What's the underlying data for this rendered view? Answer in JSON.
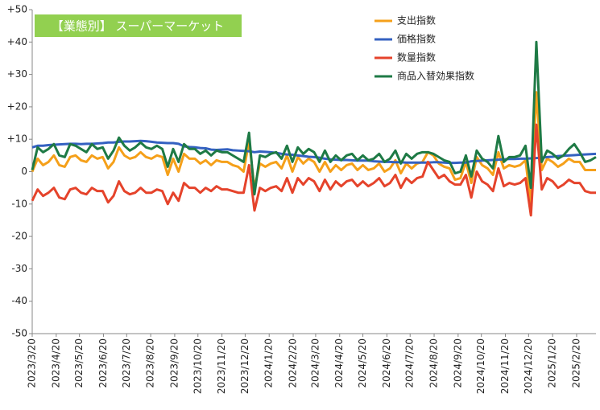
{
  "chart_data": {
    "type": "line",
    "title": "【業態別】 スーパーマーケット",
    "title_color": "#92d050",
    "legend": "top-right",
    "x": [
      "2023/3/20",
      "2023/3/27",
      "2023/4/3",
      "2023/4/10",
      "2023/4/17",
      "2023/4/24",
      "2023/5/1",
      "2023/5/8",
      "2023/5/15",
      "2023/5/22",
      "2023/5/29",
      "2023/6/5",
      "2023/6/12",
      "2023/6/19",
      "2023/6/26",
      "2023/7/3",
      "2023/7/10",
      "2023/7/17",
      "2023/7/24",
      "2023/7/31",
      "2023/8/7",
      "2023/8/14",
      "2023/8/21",
      "2023/8/28",
      "2023/9/4",
      "2023/9/11",
      "2023/9/18",
      "2023/9/25",
      "2023/10/2",
      "2023/10/9",
      "2023/10/16",
      "2023/10/23",
      "2023/10/30",
      "2023/11/6",
      "2023/11/13",
      "2023/11/20",
      "2023/11/27",
      "2023/12/4",
      "2023/12/11",
      "2023/12/18",
      "2023/12/25",
      "2024/1/1",
      "2024/1/8",
      "2024/1/15",
      "2024/1/22",
      "2024/1/29",
      "2024/2/5",
      "2024/2/12",
      "2024/2/19",
      "2024/2/26",
      "2024/3/4",
      "2024/3/11",
      "2024/3/18",
      "2024/3/25",
      "2024/4/1",
      "2024/4/8",
      "2024/4/15",
      "2024/4/22",
      "2024/4/29",
      "2024/5/6",
      "2024/5/13",
      "2024/5/20",
      "2024/5/27",
      "2024/6/3",
      "2024/6/10",
      "2024/6/17",
      "2024/6/24",
      "2024/7/1",
      "2024/7/8",
      "2024/7/15",
      "2024/7/22",
      "2024/7/29",
      "2024/8/5",
      "2024/8/12",
      "2024/8/19",
      "2024/8/26",
      "2024/9/2",
      "2024/9/9",
      "2024/9/16",
      "2024/9/23",
      "2024/9/30",
      "2024/10/7",
      "2024/10/14",
      "2024/10/21",
      "2024/10/28",
      "2024/11/4",
      "2024/11/11",
      "2024/11/18",
      "2024/11/25",
      "2024/12/2",
      "2024/12/9",
      "2024/12/16",
      "2024/12/23",
      "2024/12/30",
      "2025/1/6",
      "2025/1/13",
      "2025/1/20",
      "2025/1/27",
      "2025/2/3",
      "2025/2/10",
      "2025/2/17",
      "2025/2/24",
      "2025/3/3",
      "2025/3/10",
      "2025/3/17"
    ],
    "xlim": [
      "2023/3/20",
      "2025/3/17"
    ],
    "xticks": [
      "2023/3/20",
      "2023/4/20",
      "2023/5/20",
      "2023/6/20",
      "2023/7/20",
      "2023/8/20",
      "2023/9/20",
      "2023/10/20",
      "2023/11/20",
      "2023/12/20",
      "2024/1/20",
      "2024/2/20",
      "2024/3/20",
      "2024/4/20",
      "2024/5/20",
      "2024/6/20",
      "2024/7/20",
      "2024/8/20",
      "2024/9/20",
      "2024/10/20",
      "2024/11/20",
      "2024/12/20",
      "2025/1/20",
      "2025/2/20"
    ],
    "ylim": [
      -50,
      50
    ],
    "yticks": [
      {
        "value": 50,
        "label": "+50"
      },
      {
        "value": 40,
        "label": "+40"
      },
      {
        "value": 30,
        "label": "+30"
      },
      {
        "value": 20,
        "label": "+20"
      },
      {
        "value": 10,
        "label": "+10"
      },
      0,
      -10,
      -20,
      -30,
      -40,
      -50
    ],
    "series": [
      {
        "name": "支出指数",
        "color": "#f5a01a",
        "values": [
          0,
          4,
          2,
          3,
          5,
          2,
          1.5,
          4.5,
          5,
          3.5,
          3,
          5,
          4,
          4.5,
          1,
          3,
          7.5,
          5,
          4,
          4.5,
          6,
          4.5,
          4,
          5,
          4.5,
          -1,
          4,
          0,
          5.5,
          4,
          4,
          2.5,
          3.5,
          2,
          3.5,
          3,
          3,
          2,
          1.5,
          0,
          9.5,
          -5,
          2.5,
          1.5,
          2.5,
          3,
          1,
          5,
          0,
          4.5,
          2.5,
          4,
          3,
          0,
          3,
          0,
          2,
          0.5,
          2,
          2.5,
          0.5,
          2,
          0.5,
          1,
          2.5,
          0,
          1,
          3.5,
          -0.5,
          2.5,
          1,
          2.5,
          3,
          6,
          5,
          2.5,
          1.5,
          1,
          -2.5,
          -2,
          3,
          -3.5,
          4.5,
          2,
          1,
          -1,
          6,
          1,
          2,
          1.5,
          2,
          3.5,
          -10,
          24.5,
          0.5,
          4,
          3,
          1.5,
          2.5,
          4,
          3,
          3,
          0.5,
          0.5,
          0.5
        ]
      },
      {
        "name": "価格指数",
        "color": "#3461c1",
        "values": [
          7.5,
          8,
          8,
          8.2,
          8.3,
          8.4,
          8.5,
          8.6,
          8.6,
          8.5,
          8.6,
          8.6,
          8.7,
          8.8,
          9,
          9,
          9.2,
          9.3,
          9.3,
          9.4,
          9.5,
          9.4,
          9.2,
          9,
          8.9,
          8.8,
          8.8,
          8.6,
          7.8,
          7.6,
          7.5,
          7.3,
          7.2,
          6.8,
          6.7,
          6.8,
          6.9,
          6.6,
          6.5,
          6.4,
          6.3,
          6,
          6.2,
          6.1,
          6,
          5.8,
          5.5,
          5.3,
          5.2,
          5,
          4.8,
          4.6,
          4.5,
          4.3,
          4,
          3.8,
          3.7,
          3.6,
          3.6,
          3.5,
          3.4,
          3.4,
          3.4,
          3.2,
          3.1,
          3,
          3,
          2.9,
          2.9,
          2.8,
          2.8,
          2.8,
          2.8,
          2.8,
          2.9,
          2.9,
          2.8,
          2.7,
          2.7,
          2.8,
          2.8,
          3.2,
          3.3,
          3.4,
          3.5,
          3.6,
          3.7,
          3.8,
          3.9,
          3.9,
          4,
          4,
          4.1,
          4.2,
          4.3,
          4.5,
          4.6,
          4.8,
          4.9,
          5,
          5.1,
          5.2,
          5.3,
          5.4,
          5.5
        ]
      },
      {
        "name": "数量指数",
        "color": "#e5432b",
        "values": [
          -9,
          -5.5,
          -7.5,
          -6.5,
          -5,
          -8,
          -8.5,
          -5.5,
          -5,
          -6.5,
          -7,
          -5,
          -6,
          -6,
          -9.5,
          -7.5,
          -3,
          -6,
          -7,
          -6.5,
          -5,
          -6.5,
          -6.5,
          -5.5,
          -6,
          -10,
          -6.5,
          -9,
          -3.5,
          -5,
          -5,
          -6.5,
          -5,
          -6,
          -4.5,
          -5.5,
          -5.5,
          -6,
          -6.5,
          -6.5,
          2,
          -12,
          -5,
          -6,
          -5,
          -4.5,
          -6,
          -2,
          -6.5,
          -2,
          -4,
          -2,
          -3,
          -6,
          -2.5,
          -5.5,
          -3,
          -4.5,
          -3,
          -2.5,
          -4.5,
          -3,
          -4.5,
          -3.5,
          -2,
          -4.5,
          -3.5,
          -1,
          -5,
          -2,
          -3.5,
          -2,
          -1.5,
          3,
          0.5,
          -2,
          -1,
          -3,
          -4,
          -4,
          -1,
          -8,
          0,
          -3,
          -4,
          -6,
          1,
          -4.5,
          -3.5,
          -4,
          -3.5,
          -2,
          -13.5,
          14.5,
          -5.5,
          -2,
          -3,
          -5,
          -4,
          -2.5,
          -3.5,
          -3.5,
          -6,
          -6.5,
          -6.5
        ]
      },
      {
        "name": "商品入替効果指数",
        "color": "#1e7a45",
        "values": [
          0.5,
          7.5,
          6,
          7,
          8.5,
          5,
          4.5,
          8.5,
          8,
          7,
          6,
          8.5,
          7,
          7.5,
          4,
          6.5,
          10.5,
          8,
          6.5,
          7.5,
          9,
          7.5,
          7,
          8,
          7,
          1.5,
          7,
          3,
          8.5,
          7,
          7,
          5.5,
          6.5,
          5,
          6.5,
          6,
          6,
          5,
          4,
          3,
          12,
          -7,
          5,
          4.5,
          5.5,
          6,
          4,
          8,
          3,
          7.5,
          5.5,
          7,
          6,
          3,
          6.5,
          3,
          5,
          3.5,
          5,
          5.5,
          3.5,
          5,
          3.5,
          4,
          5.5,
          3,
          4,
          6.5,
          2.5,
          5.5,
          4,
          5.5,
          6,
          6,
          5.5,
          4.5,
          3.5,
          3,
          -0.5,
          0,
          5,
          -1.5,
          6.5,
          4,
          3,
          1,
          11,
          3,
          4.5,
          4.5,
          5,
          8,
          -5,
          40,
          3,
          6.5,
          5.5,
          4,
          5,
          7,
          8.5,
          6,
          3,
          3.5,
          4.5
        ]
      }
    ]
  }
}
